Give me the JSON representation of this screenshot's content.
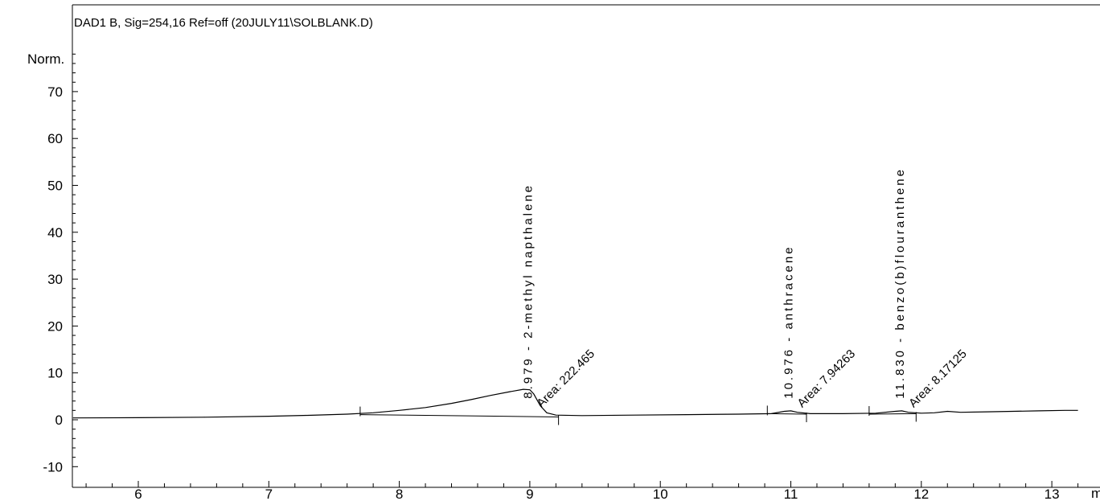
{
  "chart_data": {
    "type": "line",
    "title": "DAD1 B, Sig=254,16 Ref=off (20JULY11\\SOLBLANK.D)",
    "ylabel": "Norm.",
    "xlabel": "",
    "x_unit_label": "min",
    "xlim": [
      5.5,
      13.2
    ],
    "ylim": [
      -10,
      78
    ],
    "x_ticks": [
      6,
      7,
      8,
      9,
      10,
      11,
      12,
      13
    ],
    "y_ticks": [
      -10,
      0,
      10,
      20,
      30,
      40,
      50,
      60,
      70
    ],
    "grid": false,
    "series": [
      {
        "x": [
          5.5,
          6.0,
          6.5,
          7.0,
          7.3,
          7.6,
          7.8,
          8.0,
          8.2,
          8.4,
          8.55,
          8.7,
          8.85,
          8.95,
          9.0,
          9.03,
          9.08,
          9.13,
          9.2,
          9.4,
          9.8,
          10.2,
          10.6,
          10.85,
          10.95,
          11.0,
          11.05,
          11.15,
          11.4,
          11.65,
          11.8,
          11.85,
          11.9,
          12.0,
          12.1,
          12.2,
          12.3,
          12.5,
          12.7,
          12.9,
          13.1,
          13.2
        ],
        "y": [
          0.4,
          0.45,
          0.55,
          0.75,
          0.95,
          1.2,
          1.5,
          2.0,
          2.6,
          3.5,
          4.3,
          5.2,
          6.0,
          6.5,
          6.4,
          5.5,
          3.0,
          1.5,
          1.0,
          0.9,
          1.0,
          1.1,
          1.2,
          1.3,
          1.8,
          1.9,
          1.6,
          1.3,
          1.3,
          1.4,
          1.8,
          1.9,
          1.6,
          1.4,
          1.5,
          1.8,
          1.6,
          1.7,
          1.8,
          1.9,
          2.0,
          2.0
        ]
      }
    ],
    "baselines": [
      {
        "x": [
          7.7,
          9.22
        ],
        "y": [
          1.1,
          0.6
        ]
      },
      {
        "x": [
          10.82,
          11.12
        ],
        "y": [
          1.3,
          1.2
        ]
      },
      {
        "x": [
          11.6,
          11.96
        ],
        "y": [
          1.2,
          1.3
        ]
      }
    ],
    "peaks": [
      {
        "rt": "8.979",
        "name": "2-methyl napthalene",
        "label": "8.979 - 2-methyl napthalene",
        "area": "Area: 222.465",
        "x": 8.979
      },
      {
        "rt": "10.976",
        "name": "anthracene",
        "label": "10.976 - anthracene",
        "area": "Area: 7.94263",
        "x": 10.976
      },
      {
        "rt": "11.830",
        "name": "benzo(b)flouranthene",
        "label": "11.830 - benzo(b)flouranthene",
        "area": "Area: 8.17125",
        "x": 11.83
      }
    ]
  }
}
